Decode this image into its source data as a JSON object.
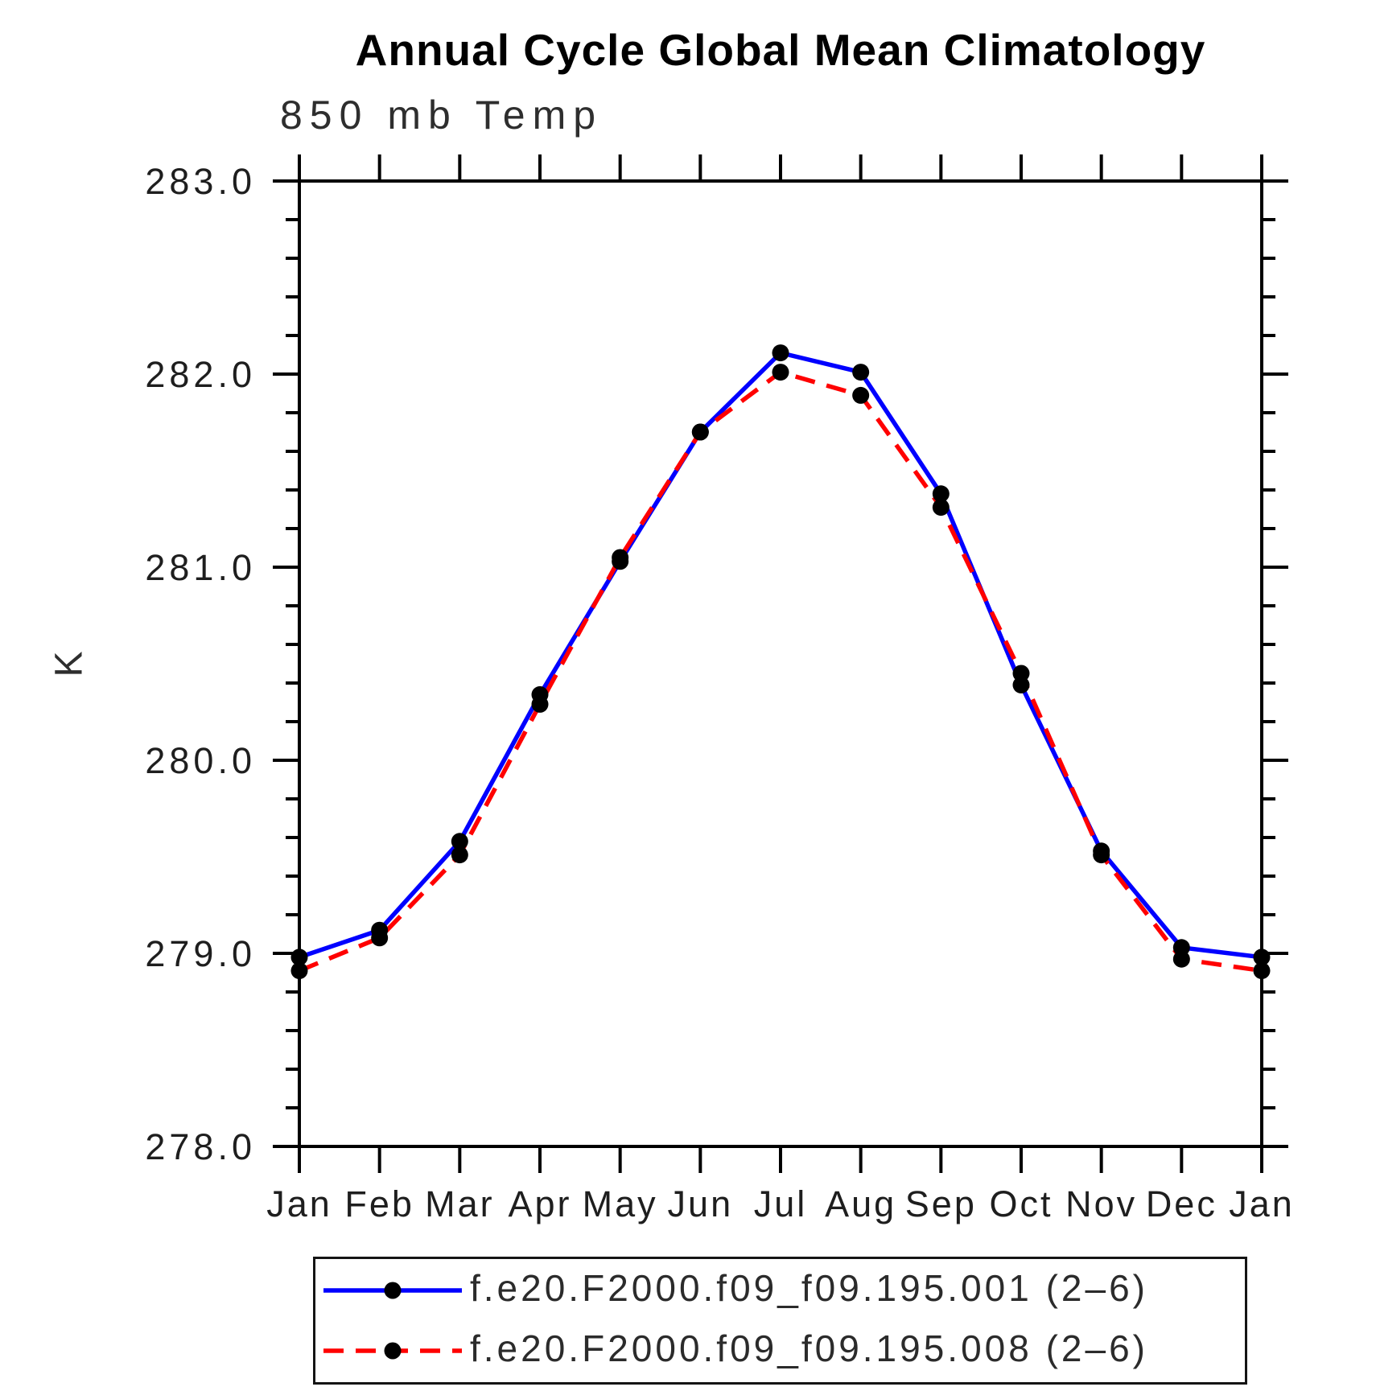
{
  "title": "Annual Cycle Global Mean Climatology",
  "chart_data": {
    "type": "line",
    "title": "Annual Cycle Global Mean Climatology",
    "subtitle": "850 mb Temp",
    "ylabel": "K",
    "x_categories": [
      "Jan",
      "Feb",
      "Mar",
      "Apr",
      "May",
      "Jun",
      "Jul",
      "Aug",
      "Sep",
      "Oct",
      "Nov",
      "Dec",
      "Jan"
    ],
    "ylim": [
      278.0,
      283.0
    ],
    "y_major_step": 1.0,
    "y_minor_step": 0.2,
    "y_tick_labels": [
      "278.0",
      "279.0",
      "280.0",
      "281.0",
      "282.0",
      "283.0"
    ],
    "grid": false,
    "legend_position": "bottom",
    "axis_color": "#000000",
    "marker": "filled-circle",
    "marker_color": "#000000",
    "series": [
      {
        "name": "f.e20.F2000.f09_f09.195.001 (2–6)",
        "color": "#0000ff",
        "line_style": "solid",
        "values": [
          278.98,
          279.12,
          279.58,
          280.34,
          281.03,
          281.7,
          282.11,
          282.01,
          281.38,
          280.39,
          279.53,
          279.03,
          278.98
        ]
      },
      {
        "name": "f.e20.F2000.f09_f09.195.008 (2–6)",
        "color": "#ff0000",
        "line_style": "dashed",
        "values": [
          278.91,
          279.08,
          279.51,
          280.29,
          281.05,
          281.7,
          282.01,
          281.89,
          281.31,
          280.45,
          279.51,
          278.97,
          278.91
        ]
      }
    ]
  }
}
